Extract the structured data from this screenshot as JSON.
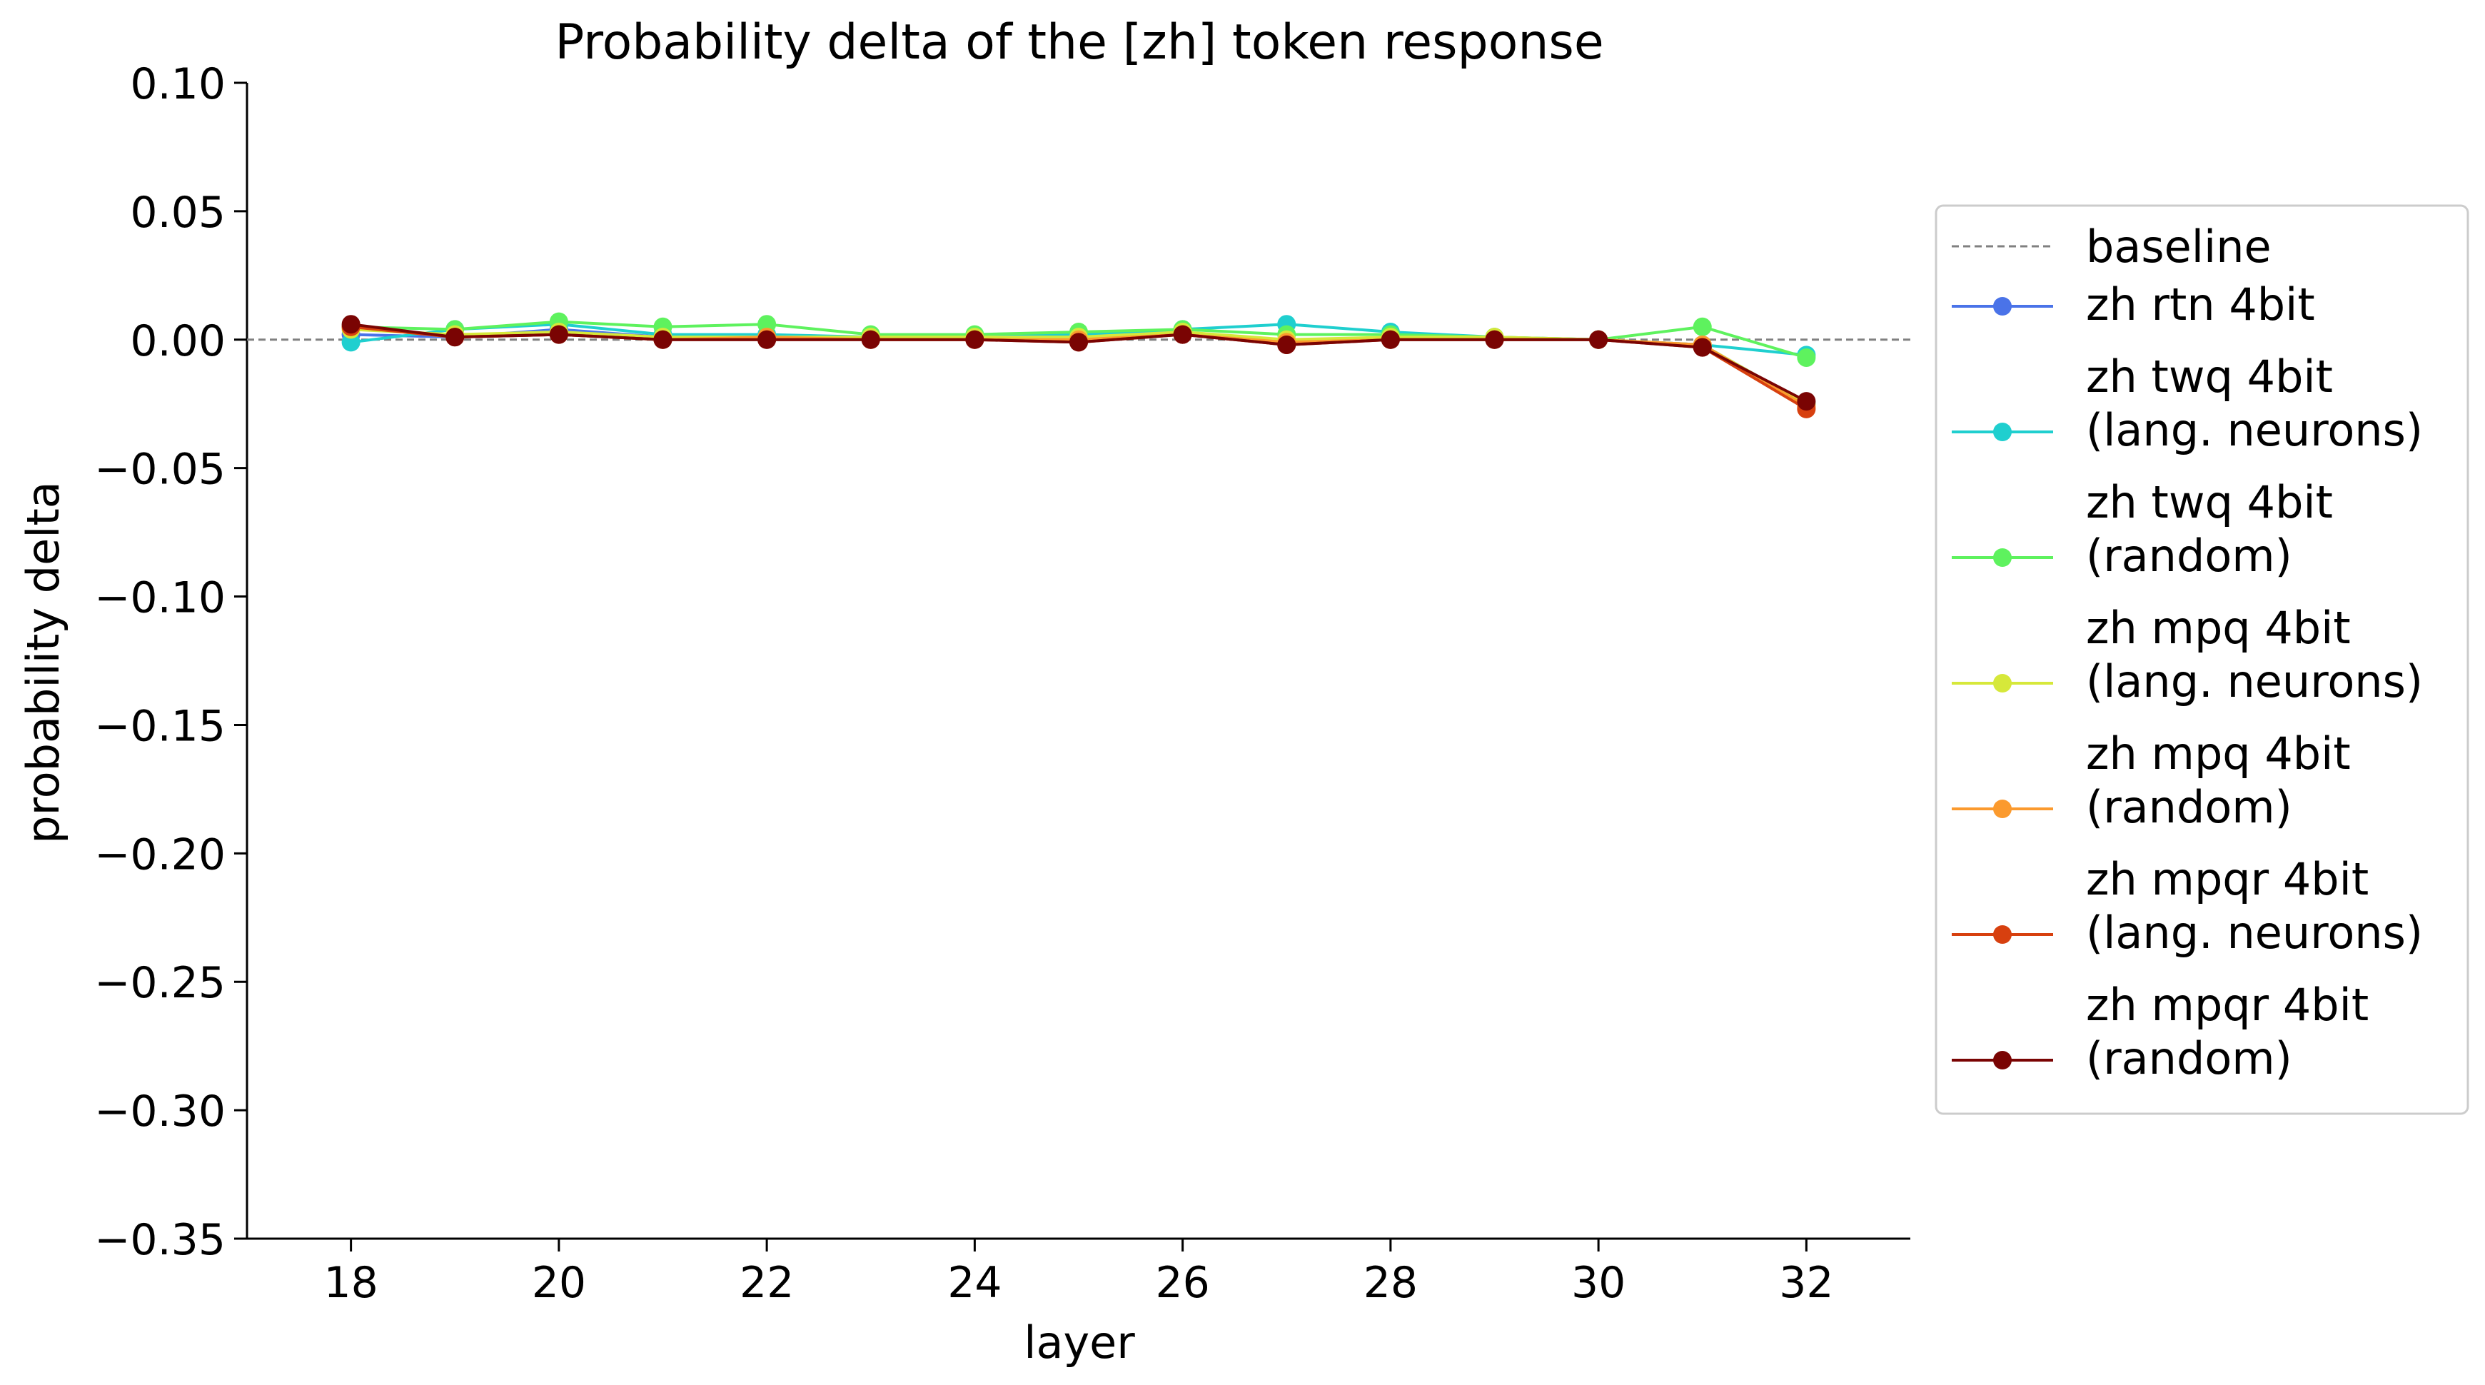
{
  "chart_data": {
    "type": "line",
    "title": "Probability delta of the [zh] token response",
    "xlabel": "layer",
    "ylabel": "probability delta",
    "xlim": [
      17,
      33
    ],
    "ylim": [
      -0.35,
      0.1
    ],
    "xticks": [
      18,
      20,
      22,
      24,
      26,
      28,
      30,
      32
    ],
    "xtick_labels": [
      "18",
      "20",
      "22",
      "24",
      "26",
      "28",
      "30",
      "32"
    ],
    "yticks": [
      0.1,
      0.05,
      0.0,
      -0.05,
      -0.1,
      -0.15,
      -0.2,
      -0.25,
      -0.3,
      -0.35
    ],
    "ytick_labels": [
      "0.10",
      "0.05",
      "0.00",
      "−0.05",
      "−0.10",
      "−0.15",
      "−0.20",
      "−0.25",
      "−0.30",
      "−0.35"
    ],
    "grid": false,
    "legend_position": "right-outside",
    "baseline": {
      "name": "baseline",
      "value": 0.0,
      "color": "#808080",
      "style": "dashed"
    },
    "x": [
      18,
      19,
      20,
      21,
      22,
      23,
      24,
      25,
      26,
      27,
      28,
      29,
      30,
      31,
      32
    ],
    "series": [
      {
        "name": "zh rtn 4bit",
        "color": "#4a73e8",
        "values": [
          0.002,
          0.001,
          0.004,
          0.001,
          0.001,
          0.001,
          0.001,
          0.0,
          0.002,
          -0.001,
          0.0,
          0.0,
          0.0,
          -0.002,
          -0.025
        ]
      },
      {
        "name": "zh twq 4bit\n(lang. neurons)",
        "color": "#1fcfcf",
        "values": [
          -0.001,
          0.004,
          0.006,
          0.002,
          0.002,
          0.001,
          0.001,
          0.002,
          0.004,
          0.006,
          0.003,
          0.001,
          0.0,
          -0.002,
          -0.006
        ]
      },
      {
        "name": "zh twq 4bit\n(random)",
        "color": "#5ef25e",
        "values": [
          0.005,
          0.004,
          0.007,
          0.005,
          0.006,
          0.002,
          0.002,
          0.003,
          0.004,
          0.002,
          0.002,
          0.001,
          0.0,
          0.005,
          -0.007
        ]
      },
      {
        "name": "zh mpq 4bit\n(lang. neurons)",
        "color": "#d6e83a",
        "values": [
          0.004,
          0.002,
          0.003,
          0.001,
          0.001,
          0.001,
          0.001,
          0.001,
          0.003,
          0.0,
          0.001,
          0.001,
          0.0,
          -0.002,
          -0.025
        ]
      },
      {
        "name": "zh mpq 4bit\n(random)",
        "color": "#fb9a2e",
        "values": [
          0.005,
          0.001,
          0.002,
          0.0,
          0.001,
          0.0,
          0.0,
          0.0,
          0.002,
          -0.001,
          0.0,
          0.0,
          0.0,
          -0.002,
          -0.026
        ]
      },
      {
        "name": "zh mpqr 4bit\n(lang. neurons)",
        "color": "#d7400f",
        "values": [
          0.005,
          0.001,
          0.002,
          0.0,
          0.0,
          0.0,
          0.0,
          -0.001,
          0.002,
          -0.002,
          0.0,
          0.0,
          0.0,
          -0.003,
          -0.027
        ]
      },
      {
        "name": "zh mpqr 4bit\n(random)",
        "color": "#7a0403",
        "values": [
          0.006,
          0.001,
          0.002,
          0.0,
          0.0,
          0.0,
          0.0,
          -0.001,
          0.002,
          -0.002,
          0.0,
          0.0,
          0.0,
          -0.003,
          -0.024
        ]
      }
    ]
  }
}
